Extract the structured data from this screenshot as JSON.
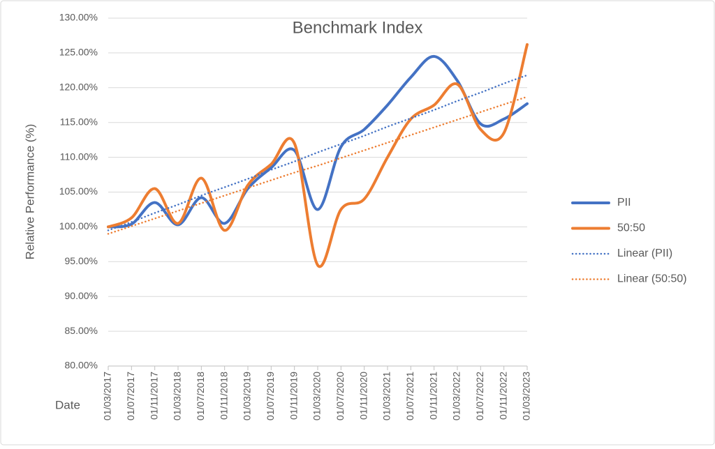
{
  "chart_data": {
    "type": "line",
    "title": "Benchmark Index",
    "x_label": "Date",
    "y_label": "Relative Performance (%)",
    "categories": [
      "01/03/2017",
      "01/07/2017",
      "01/11/2017",
      "01/03/2018",
      "01/07/2018",
      "01/11/2018",
      "01/03/2019",
      "01/07/2019",
      "01/11/2019",
      "01/03/2020",
      "01/07/2020",
      "01/11/2020",
      "01/03/2021",
      "01/07/2021",
      "01/11/2021",
      "01/03/2022",
      "01/07/2022",
      "01/11/2022",
      "01/03/2023"
    ],
    "series": [
      {
        "name": "PII",
        "color": "#4472c4",
        "style": "solid",
        "values": [
          100.0,
          100.4,
          103.5,
          100.3,
          104.2,
          100.5,
          105.5,
          108.5,
          111.0,
          102.5,
          111.5,
          114.0,
          117.5,
          121.5,
          124.5,
          121.0,
          114.8,
          115.5,
          117.7
        ]
      },
      {
        "name": "50:50",
        "color": "#ed7d31",
        "style": "solid",
        "values": [
          100.0,
          101.3,
          105.5,
          100.5,
          107.0,
          99.5,
          106.0,
          109.0,
          112.0,
          94.5,
          102.5,
          104.0,
          110.0,
          115.5,
          117.5,
          120.5,
          114.0,
          113.5,
          126.2
        ]
      },
      {
        "name": "Linear (PII)",
        "color": "#4472c4",
        "style": "dotted",
        "values": [
          99.5,
          100.7,
          102.0,
          103.2,
          104.5,
          105.7,
          106.9,
          108.2,
          109.4,
          110.7,
          111.9,
          113.1,
          114.4,
          115.6,
          116.8,
          118.1,
          119.3,
          120.6,
          121.8
        ]
      },
      {
        "name": "Linear (50:50)",
        "color": "#ed7d31",
        "style": "dotted",
        "values": [
          99.0,
          100.1,
          101.2,
          102.3,
          103.4,
          104.5,
          105.6,
          106.7,
          107.8,
          108.8,
          109.9,
          111.0,
          112.1,
          113.2,
          114.3,
          115.4,
          116.5,
          117.6,
          118.7
        ]
      }
    ],
    "ylim": [
      80,
      130
    ],
    "yticks": [
      {
        "value": 80,
        "label": "80.00%"
      },
      {
        "value": 85,
        "label": "85.00%"
      },
      {
        "value": 90,
        "label": "90.00%"
      },
      {
        "value": 95,
        "label": "95.00%"
      },
      {
        "value": 100,
        "label": "100.00%"
      },
      {
        "value": 105,
        "label": "105.00%"
      },
      {
        "value": 110,
        "label": "110.00%"
      },
      {
        "value": 115,
        "label": "115.00%"
      },
      {
        "value": 120,
        "label": "120.00%"
      },
      {
        "value": 125,
        "label": "125.00%"
      },
      {
        "value": 130,
        "label": "130.00%"
      }
    ],
    "grid": true,
    "legend": "right",
    "smooth": true
  }
}
